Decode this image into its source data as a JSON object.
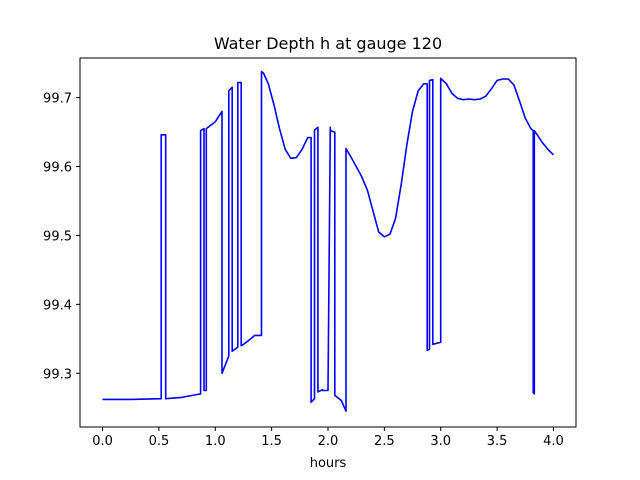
{
  "chart_data": {
    "type": "line",
    "title": "Water Depth h at gauge 120",
    "xlabel": "hours",
    "ylabel": "",
    "xlim": [
      -0.2,
      4.2
    ],
    "ylim": [
      99.222,
      99.7575
    ],
    "xticks": [
      0.0,
      0.5,
      1.0,
      1.5,
      2.0,
      2.5,
      3.0,
      3.5,
      4.0
    ],
    "xtick_labels": [
      "0.0",
      "0.5",
      "1.0",
      "1.5",
      "2.0",
      "2.5",
      "3.0",
      "3.5",
      "4.0"
    ],
    "yticks": [
      99.3,
      99.4,
      99.5,
      99.6,
      99.7
    ],
    "ytick_labels": [
      "99.3",
      "99.4",
      "99.5",
      "99.6",
      "99.7"
    ],
    "grid": false,
    "series": [
      {
        "color": "#0000ff",
        "x": [
          0.0,
          0.25,
          0.52,
          0.52,
          0.56,
          0.56,
          0.7,
          0.87,
          0.87,
          0.9,
          0.9,
          0.92,
          0.92,
          1.0,
          1.06,
          1.06,
          1.12,
          1.12,
          1.15,
          1.15,
          1.2,
          1.2,
          1.23,
          1.23,
          1.25,
          1.3,
          1.35,
          1.41,
          1.41,
          1.43,
          1.47,
          1.52,
          1.57,
          1.62,
          1.67,
          1.72,
          1.77,
          1.82,
          1.85,
          1.85,
          1.88,
          1.88,
          1.91,
          1.91,
          1.95,
          1.95,
          2.0,
          2.02,
          2.02,
          2.06,
          2.06,
          2.12,
          2.16,
          2.16,
          2.2,
          2.25,
          2.3,
          2.35,
          2.4,
          2.45,
          2.5,
          2.55,
          2.6,
          2.65,
          2.7,
          2.75,
          2.8,
          2.85,
          2.88,
          2.88,
          2.9,
          2.9,
          2.93,
          2.93,
          3.0,
          3.0,
          3.05,
          3.1,
          3.15,
          3.2,
          3.25,
          3.3,
          3.35,
          3.4,
          3.45,
          3.5,
          3.55,
          3.6,
          3.65,
          3.7,
          3.75,
          3.8,
          3.82,
          3.82,
          3.83,
          3.83,
          3.86,
          3.9,
          3.95,
          4.0
        ],
        "values": [
          99.262,
          99.262,
          99.263,
          99.646,
          99.646,
          99.263,
          99.265,
          99.27,
          99.652,
          99.655,
          99.275,
          99.275,
          99.655,
          99.665,
          99.68,
          99.3,
          99.325,
          99.71,
          99.715,
          99.332,
          99.338,
          99.722,
          99.722,
          99.34,
          99.342,
          99.348,
          99.355,
          99.355,
          99.738,
          99.735,
          99.72,
          99.69,
          99.655,
          99.625,
          99.612,
          99.613,
          99.625,
          99.642,
          99.642,
          99.258,
          99.263,
          99.653,
          99.657,
          99.273,
          99.276,
          99.275,
          99.275,
          99.657,
          99.652,
          99.65,
          99.268,
          99.26,
          99.245,
          99.626,
          99.615,
          99.6,
          99.585,
          99.565,
          99.535,
          99.505,
          99.498,
          99.502,
          99.525,
          99.575,
          99.632,
          99.68,
          99.71,
          99.72,
          99.72,
          99.333,
          99.335,
          99.725,
          99.726,
          99.342,
          99.345,
          99.728,
          99.72,
          99.706,
          99.699,
          99.697,
          99.698,
          99.697,
          99.698,
          99.702,
          99.713,
          99.725,
          99.727,
          99.727,
          99.718,
          99.695,
          99.67,
          99.655,
          99.652,
          99.272,
          99.27,
          99.652,
          99.645,
          99.635,
          99.625,
          99.617
        ]
      }
    ]
  }
}
